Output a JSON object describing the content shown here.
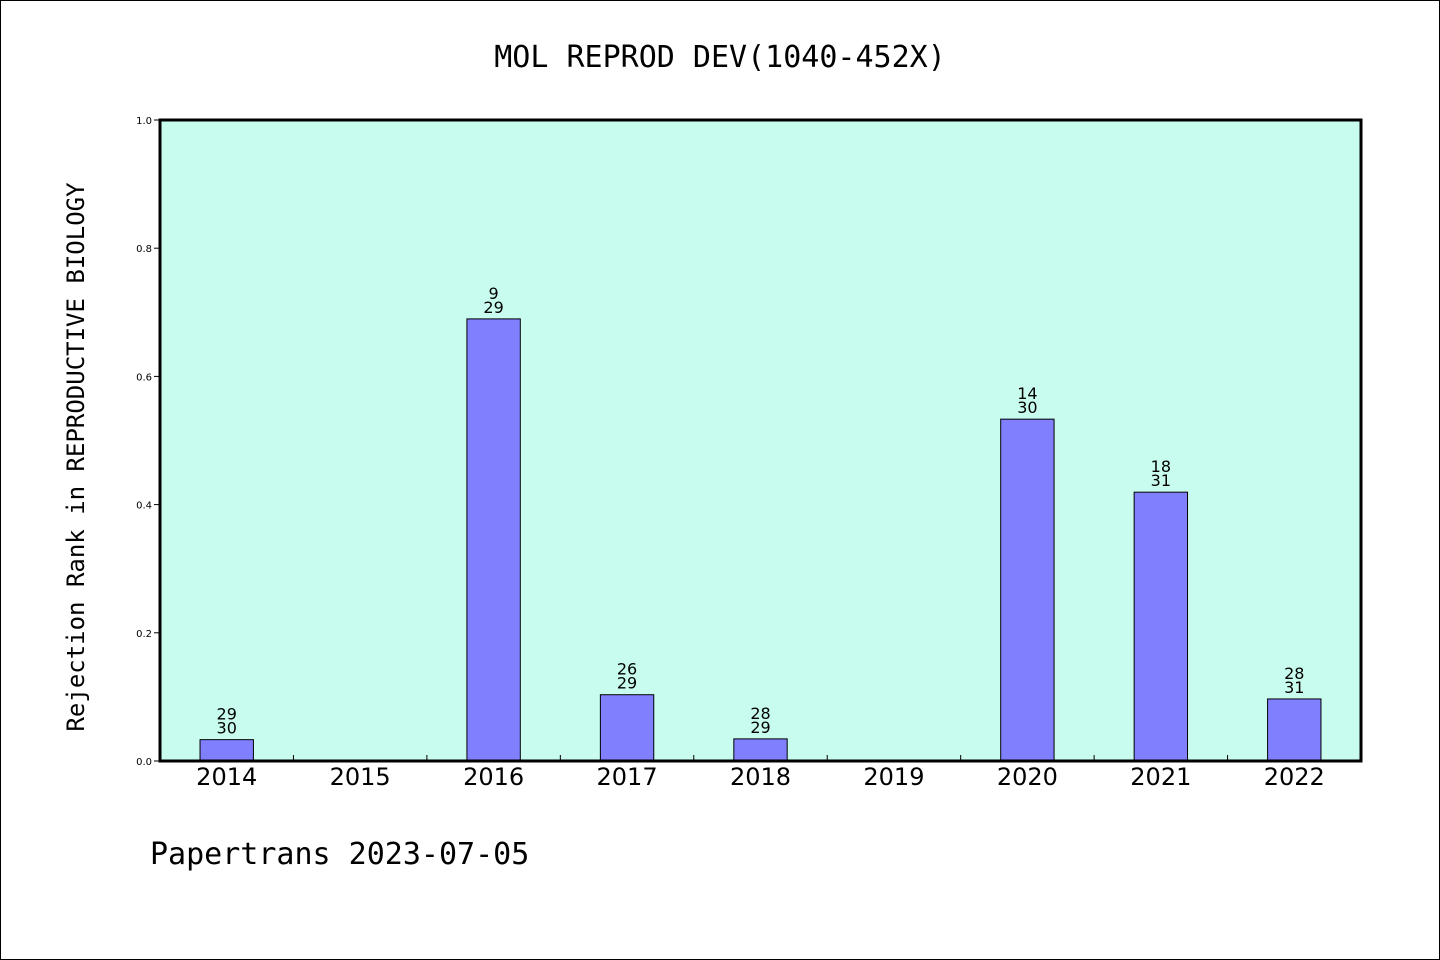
{
  "chart_data": {
    "type": "bar",
    "title": "MOL REPROD DEV(1040-452X)",
    "ylabel": "Rejection Rank in REPRODUCTIVE BIOLOGY",
    "xlabel": "",
    "categories": [
      "2014",
      "2015",
      "2016",
      "2017",
      "2018",
      "2019",
      "2020",
      "2021",
      "2022"
    ],
    "values": [
      0.0333,
      null,
      0.6897,
      0.1034,
      0.0345,
      null,
      0.5333,
      0.4194,
      0.0968
    ],
    "rank": [
      29,
      null,
      9,
      26,
      28,
      null,
      14,
      18,
      28
    ],
    "total": [
      30,
      null,
      29,
      29,
      29,
      null,
      30,
      31,
      31
    ],
    "ylim": [
      0,
      1.0
    ],
    "yticks": [
      "0.0",
      "0.2",
      "0.4",
      "0.6",
      "0.8",
      "1.0"
    ],
    "grid": false,
    "colors": {
      "plot_background": "#c8fcee",
      "bar_fill": "#8080ff",
      "bar_edge": "#000000"
    }
  },
  "footer": {
    "text": "Papertrans 2023-07-05"
  }
}
